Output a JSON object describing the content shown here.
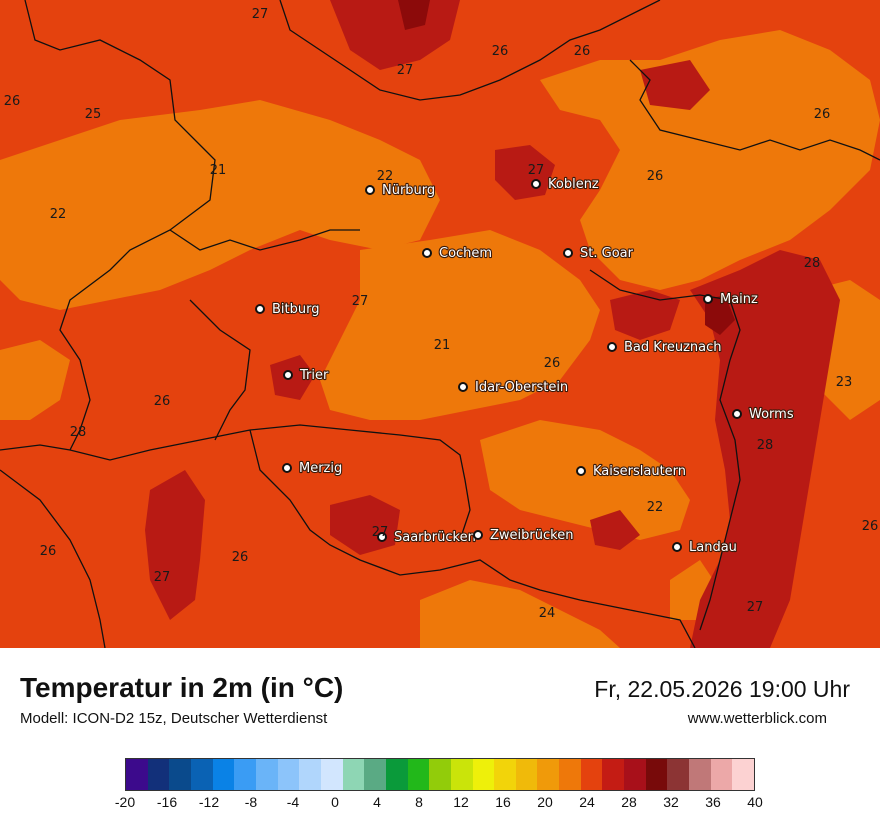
{
  "map": {
    "cities": [
      {
        "name": "Nürburg"
      },
      {
        "name": "Koblenz"
      },
      {
        "name": "Cochem"
      },
      {
        "name": "St. Goar"
      },
      {
        "name": "Mainz"
      },
      {
        "name": "Bitburg"
      },
      {
        "name": "Bad Kreuznach"
      },
      {
        "name": "Trier"
      },
      {
        "name": "Idar-Oberstein"
      },
      {
        "name": "Worms"
      },
      {
        "name": "Merzig"
      },
      {
        "name": "Kaiserslautern"
      },
      {
        "name": "Saarbrücken"
      },
      {
        "name": "Zweibrücken"
      },
      {
        "name": "Landau"
      }
    ],
    "isotherm_labels": [
      "27",
      "26",
      "27",
      "26",
      "26",
      "25",
      "22",
      "21",
      "22",
      "27",
      "26",
      "28",
      "27",
      "21",
      "26",
      "23",
      "26",
      "28",
      "28",
      "22",
      "26",
      "26",
      "27",
      "27",
      "26",
      "24",
      "27",
      "26"
    ]
  },
  "footer": {
    "title": "Temperatur in 2m (in °C)",
    "subtitle": "Modell: ICON-D2 15z, Deutscher Wetterdienst",
    "datetime": "Fr, 22.05.2026 19:00 Uhr",
    "website": "www.wetterblick.com"
  },
  "legend": {
    "ticks": [
      "-20",
      "-16",
      "-12",
      "-8",
      "-4",
      "0",
      "4",
      "8",
      "12",
      "16",
      "20",
      "24",
      "28",
      "32",
      "36",
      "40"
    ],
    "colors": [
      "#3c0a8c",
      "#12307a",
      "#0a4a8c",
      "#0a62b4",
      "#0a82e6",
      "#3a9cf4",
      "#6ab4f8",
      "#8cc4fa",
      "#b0d6fc",
      "#d2e6fe",
      "#8ed6b4",
      "#5aaa84",
      "#0a9a3a",
      "#22b81a",
      "#92cc0a",
      "#cae40a",
      "#eef00a",
      "#f2d40a",
      "#f0ba0a",
      "#f09a0a",
      "#ee780a",
      "#e4420e",
      "#c41c14",
      "#a8101a",
      "#780a0a",
      "#8c3434",
      "#c07878",
      "#eca8a8",
      "#fcd2d2"
    ]
  }
}
